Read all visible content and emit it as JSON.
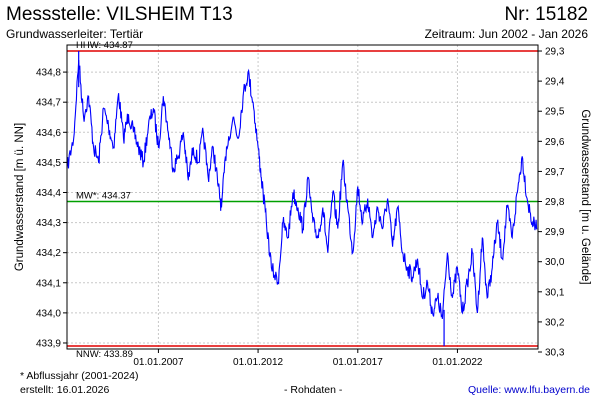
{
  "header": {
    "title": "Messstelle: VILSHEIM T13",
    "number": "Nr: 15182",
    "subtitle": "Grundwasserleiter: Tertiär",
    "period": "Zeitraum: Jun 2002 - Jan 2026"
  },
  "footer": {
    "note": "* Abflussjahr (2001-2024)",
    "created": "erstellt:  16.01.2026",
    "raw": "- Rohdaten -",
    "source": "Quelle: www.lfu.bayern.de"
  },
  "colors": {
    "series": "#0000ff",
    "hhw": "#e00000",
    "nnw": "#e00000",
    "mw": "#00a000",
    "grid": "#c8c8c8"
  },
  "chart_data": {
    "type": "line",
    "ylabel": "Grundwasserstand [m ü. NN]",
    "ylabel_right": "Grundwasserstand [m u. Gelände]",
    "ylim": [
      433.88,
      434.89
    ],
    "y_ticks": [
      433.9,
      434.0,
      434.1,
      434.2,
      434.3,
      434.4,
      434.5,
      434.6,
      434.7,
      434.8
    ],
    "y_tick_labels": [
      "433,9",
      "434,0",
      "434,1",
      "434,2",
      "434,3",
      "434,4",
      "434,5",
      "434,6",
      "434,7",
      "434,8"
    ],
    "y_right_labels": [
      "29,3",
      "29,4",
      "29,5",
      "29,6",
      "29,7",
      "29,8",
      "29,9",
      "30,0",
      "30,1",
      "30,2",
      "30,3"
    ],
    "x_range": [
      "2002-06-01",
      "2026-01-16"
    ],
    "x_ticks": [
      "2007-01-01",
      "2012-01-01",
      "2017-01-01",
      "2022-01-01"
    ],
    "x_tick_labels": [
      "01.01.2007",
      "01.01.2012",
      "01.01.2017",
      "01.01.2022"
    ],
    "grid": true,
    "reference_lines": [
      {
        "id": "hhw",
        "label": "HHW: 434.87",
        "value": 434.87
      },
      {
        "id": "mw",
        "label": "MW*: 434.37",
        "value": 434.37
      },
      {
        "id": "nnw",
        "label": "NNW: 433.89",
        "value": 433.89
      }
    ],
    "series": [
      {
        "x": [
          "2002-06-01",
          "2002-10-01",
          "2003-01-01",
          "2003-04-01",
          "2003-07-01",
          "2003-10-01",
          "2004-01-01",
          "2004-04-01",
          "2004-07-01",
          "2004-10-01",
          "2005-01-01",
          "2005-04-01",
          "2005-07-01",
          "2005-10-01",
          "2006-01-01",
          "2006-04-01",
          "2006-07-01",
          "2006-10-01",
          "2007-01-01",
          "2007-04-01",
          "2007-07-01",
          "2007-10-01",
          "2008-01-01",
          "2008-04-01",
          "2008-07-01",
          "2008-10-01",
          "2009-01-01",
          "2009-04-01",
          "2009-07-01",
          "2009-10-01",
          "2010-01-01",
          "2010-03-01",
          "2010-06-01",
          "2010-10-01",
          "2011-01-01",
          "2011-04-01",
          "2011-07-01",
          "2011-10-01",
          "2012-01-01",
          "2012-03-01",
          "2012-06-01",
          "2012-09-01",
          "2013-01-01",
          "2013-04-01",
          "2013-07-01",
          "2013-10-01",
          "2014-01-01",
          "2014-04-01",
          "2014-07-01",
          "2014-10-01",
          "2015-01-01",
          "2015-04-01",
          "2015-07-01",
          "2015-10-01",
          "2016-01-01",
          "2016-04-01",
          "2016-07-01",
          "2016-10-01",
          "2017-01-01",
          "2017-04-01",
          "2017-07-01",
          "2017-10-01",
          "2018-01-01",
          "2018-04-01",
          "2018-07-01",
          "2018-10-01",
          "2019-01-01",
          "2019-04-01",
          "2019-07-01",
          "2019-10-01",
          "2020-01-01",
          "2020-04-01",
          "2020-07-01",
          "2020-10-01",
          "2021-01-01",
          "2021-04-01",
          "2021-07-01",
          "2021-10-01",
          "2022-01-01",
          "2022-04-01",
          "2022-07-01",
          "2022-10-01",
          "2023-01-01",
          "2023-04-01",
          "2023-07-01",
          "2023-10-01",
          "2024-01-01",
          "2024-04-01",
          "2024-07-01",
          "2024-10-01",
          "2025-01-01",
          "2025-04-01",
          "2025-07-01",
          "2025-10-01",
          "2026-01-01"
        ],
        "values": [
          434.48,
          434.58,
          434.84,
          434.65,
          434.72,
          434.55,
          434.5,
          434.68,
          434.62,
          434.55,
          434.73,
          434.58,
          434.66,
          434.6,
          434.55,
          434.5,
          434.62,
          434.68,
          434.55,
          434.72,
          434.6,
          434.48,
          434.52,
          434.6,
          434.44,
          434.55,
          434.5,
          434.6,
          434.45,
          434.55,
          434.42,
          434.35,
          434.55,
          434.65,
          434.58,
          434.72,
          434.8,
          434.7,
          434.55,
          434.45,
          434.3,
          434.15,
          434.1,
          434.3,
          434.25,
          434.4,
          434.35,
          434.28,
          434.45,
          434.3,
          434.25,
          434.35,
          434.2,
          434.4,
          434.28,
          434.5,
          434.35,
          434.2,
          434.42,
          434.3,
          434.38,
          434.25,
          434.35,
          434.28,
          434.38,
          434.22,
          434.35,
          434.2,
          434.15,
          434.12,
          434.18,
          434.05,
          434.1,
          434.0,
          434.05,
          433.98,
          434.2,
          434.05,
          434.15,
          434.0,
          434.1,
          434.2,
          434.0,
          434.25,
          434.05,
          434.15,
          434.3,
          434.18,
          434.35,
          434.25,
          434.4,
          434.52,
          434.38,
          434.3,
          434.28
        ],
        "min": {
          "date": "2021-05-01",
          "value": 433.89
        },
        "max": {
          "date": "2003-01-01",
          "value": 434.87
        }
      }
    ]
  }
}
